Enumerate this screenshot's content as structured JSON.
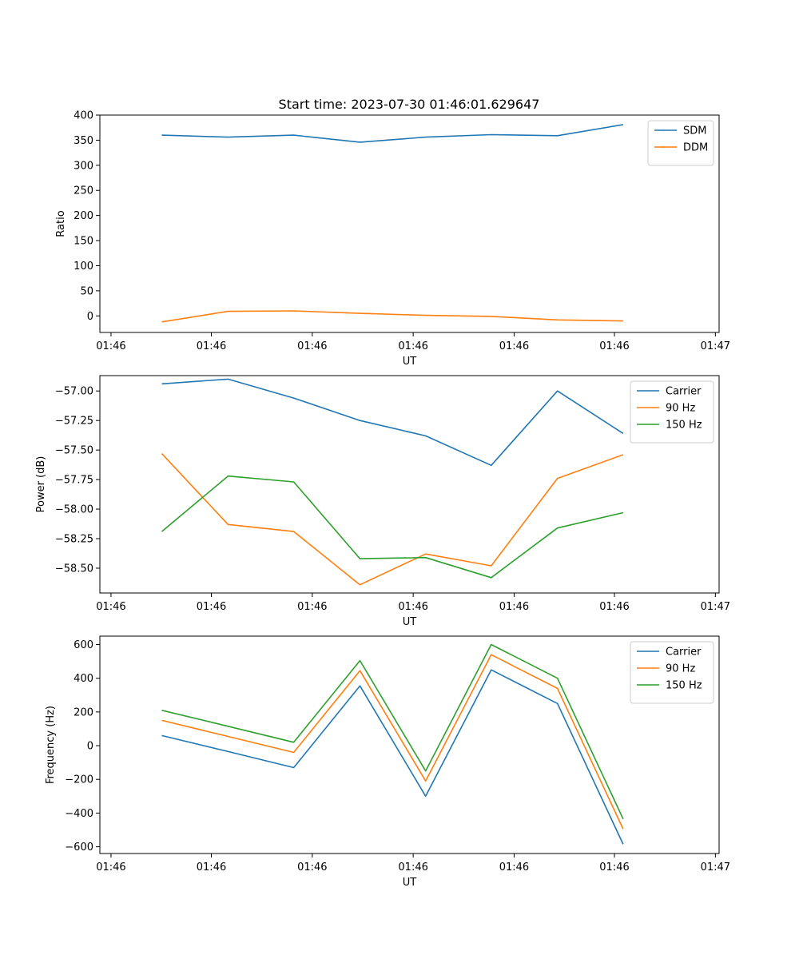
{
  "chart_data": [
    {
      "type": "line",
      "title": "Start time: 2023-07-30 01:46:01.629647",
      "xlabel": "UT",
      "ylabel": "Ratio",
      "x_tick_labels": [
        "01:46",
        "01:46",
        "01:46",
        "01:46",
        "01:46",
        "01:46",
        "01:47"
      ],
      "y_ticks": [
        0,
        50,
        100,
        150,
        200,
        250,
        300,
        350,
        400
      ],
      "ylim": [
        -33,
        400
      ],
      "legend": "top-right",
      "grid": false,
      "series": [
        {
          "name": "SDM",
          "color": "#1f77b4",
          "values": [
            360,
            356,
            360,
            346,
            356,
            361,
            359,
            381
          ]
        },
        {
          "name": "DDM",
          "color": "#ff7f0e",
          "values": [
            -12,
            9,
            10,
            5,
            1,
            -1,
            -8,
            -10
          ]
        }
      ]
    },
    {
      "type": "line",
      "title": "",
      "xlabel": "UT",
      "ylabel": "Power (dB)",
      "x_tick_labels": [
        "01:46",
        "01:46",
        "01:46",
        "01:46",
        "01:46",
        "01:46",
        "01:47"
      ],
      "y_ticks": [
        -58.5,
        -58.25,
        -58.0,
        -57.75,
        -57.5,
        -57.25,
        -57.0
      ],
      "y_tick_labels": [
        "−58.50",
        "−58.25",
        "−58.00",
        "−57.75",
        "−57.50",
        "−57.25",
        "−57.00"
      ],
      "ylim": [
        -58.71,
        -56.87
      ],
      "legend": "top-right",
      "grid": false,
      "series": [
        {
          "name": "Carrier",
          "color": "#1f77b4",
          "values": [
            -56.94,
            -56.9,
            -57.06,
            -57.25,
            -57.38,
            -57.63,
            -57.0,
            -57.36
          ]
        },
        {
          "name": "90 Hz",
          "color": "#ff7f0e",
          "values": [
            -57.53,
            -58.13,
            -58.19,
            -58.64,
            -58.38,
            -58.48,
            -57.74,
            -57.54
          ]
        },
        {
          "name": "150 Hz",
          "color": "#2ca02c",
          "values": [
            -58.19,
            -57.72,
            -57.77,
            -58.42,
            -58.41,
            -58.58,
            -58.16,
            -58.03
          ]
        }
      ]
    },
    {
      "type": "line",
      "title": "",
      "xlabel": "UT",
      "ylabel": "Frequency (Hz)",
      "x_tick_labels": [
        "01:46",
        "01:46",
        "01:46",
        "01:46",
        "01:46",
        "01:46",
        "01:47"
      ],
      "y_ticks": [
        -600,
        -400,
        -200,
        0,
        200,
        400,
        600
      ],
      "y_tick_labels": [
        "−600",
        "−400",
        "−200",
        "0",
        "200",
        "400",
        "600"
      ],
      "ylim": [
        -640,
        650
      ],
      "legend": "top-right",
      "grid": false,
      "series": [
        {
          "name": "Carrier",
          "color": "#1f77b4",
          "values": [
            60,
            -35,
            -130,
            355,
            -300,
            450,
            250,
            -585
          ]
        },
        {
          "name": "90 Hz",
          "color": "#ff7f0e",
          "values": [
            150,
            55,
            -40,
            445,
            -210,
            540,
            340,
            -495
          ]
        },
        {
          "name": "150 Hz",
          "color": "#2ca02c",
          "values": [
            210,
            115,
            20,
            505,
            -150,
            600,
            400,
            -435
          ]
        }
      ]
    }
  ]
}
